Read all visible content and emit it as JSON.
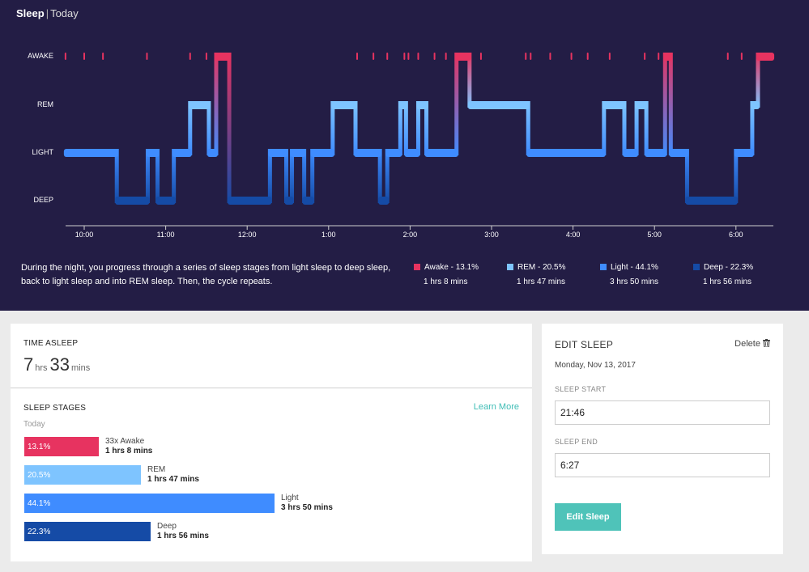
{
  "header": {
    "title": "Sleep",
    "subtitle": "Today"
  },
  "colors": {
    "awake": "#e73360",
    "rem": "#7ec4ff",
    "light": "#3f8cff",
    "deep": "#154ba6",
    "background": "#231d45",
    "accent": "#4fc3b9"
  },
  "chart_data": {
    "type": "line",
    "y_levels": [
      "AWAKE",
      "REM",
      "LIGHT",
      "DEEP"
    ],
    "x_ticks": [
      "10:00",
      "11:00",
      "12:00",
      "1:00",
      "2:00",
      "3:00",
      "4:00",
      "5:00",
      "6:00"
    ],
    "x_range_hours": [
      21.77,
      30.45
    ],
    "segments": [
      {
        "stage": "light",
        "start": 21.77,
        "end": 22.4
      },
      {
        "stage": "deep",
        "start": 22.4,
        "end": 22.78
      },
      {
        "stage": "light",
        "start": 22.78,
        "end": 22.9
      },
      {
        "stage": "deep",
        "start": 22.9,
        "end": 23.1
      },
      {
        "stage": "light",
        "start": 23.1,
        "end": 23.3
      },
      {
        "stage": "rem",
        "start": 23.3,
        "end": 23.53
      },
      {
        "stage": "light",
        "start": 23.53,
        "end": 23.62
      },
      {
        "stage": "awake",
        "start": 23.62,
        "end": 23.78
      },
      {
        "stage": "deep",
        "start": 23.78,
        "end": 24.28
      },
      {
        "stage": "light",
        "start": 24.28,
        "end": 24.48
      },
      {
        "stage": "deep",
        "start": 24.48,
        "end": 24.55
      },
      {
        "stage": "light",
        "start": 24.55,
        "end": 24.7
      },
      {
        "stage": "deep",
        "start": 24.7,
        "end": 24.8
      },
      {
        "stage": "light",
        "start": 24.8,
        "end": 25.05
      },
      {
        "stage": "rem",
        "start": 25.05,
        "end": 25.33
      },
      {
        "stage": "light",
        "start": 25.33,
        "end": 25.63
      },
      {
        "stage": "deep",
        "start": 25.63,
        "end": 25.72
      },
      {
        "stage": "light",
        "start": 25.72,
        "end": 25.88
      },
      {
        "stage": "rem",
        "start": 25.88,
        "end": 25.95
      },
      {
        "stage": "light",
        "start": 25.95,
        "end": 26.1
      },
      {
        "stage": "rem",
        "start": 26.1,
        "end": 26.2
      },
      {
        "stage": "light",
        "start": 26.2,
        "end": 26.57
      },
      {
        "stage": "awake",
        "start": 26.57,
        "end": 26.73
      },
      {
        "stage": "rem",
        "start": 26.73,
        "end": 27.45
      },
      {
        "stage": "light",
        "start": 27.45,
        "end": 28.38
      },
      {
        "stage": "rem",
        "start": 28.38,
        "end": 28.63
      },
      {
        "stage": "light",
        "start": 28.63,
        "end": 28.78
      },
      {
        "stage": "rem",
        "start": 28.78,
        "end": 28.9
      },
      {
        "stage": "light",
        "start": 28.9,
        "end": 29.13
      },
      {
        "stage": "awake",
        "start": 29.13,
        "end": 29.2
      },
      {
        "stage": "light",
        "start": 29.2,
        "end": 29.4
      },
      {
        "stage": "deep",
        "start": 29.4,
        "end": 30.0
      },
      {
        "stage": "light",
        "start": 30.0,
        "end": 30.2
      },
      {
        "stage": "rem",
        "start": 30.2,
        "end": 30.27
      },
      {
        "stage": "awake",
        "start": 30.27,
        "end": 30.45
      }
    ],
    "awake_blips": [
      21.77,
      22.0,
      22.23,
      22.77,
      23.3,
      23.5,
      25.35,
      25.55,
      25.72,
      25.93,
      25.98,
      26.1,
      26.3,
      26.44,
      26.87,
      27.42,
      27.48,
      27.72,
      27.98,
      28.18,
      28.45,
      28.88,
      29.05,
      29.9,
      30.07
    ]
  },
  "description": "During the night, you progress through a series of sleep stages from light sleep to deep sleep, back to light sleep and into REM sleep. Then, the cycle repeats.",
  "legend": [
    {
      "label": "Awake - 13.1%",
      "duration": "1 hrs 8 mins",
      "color": "#e73360"
    },
    {
      "label": "REM - 20.5%",
      "duration": "1 hrs 47 mins",
      "color": "#7ec4ff"
    },
    {
      "label": "Light - 44.1%",
      "duration": "3 hrs 50 mins",
      "color": "#3f8cff"
    },
    {
      "label": "Deep - 22.3%",
      "duration": "1 hrs 56 mins",
      "color": "#154ba6"
    }
  ],
  "time_asleep": {
    "label": "TIME ASLEEP",
    "hours": "7",
    "hours_unit": "hrs",
    "minutes": "33",
    "minutes_unit": "mins"
  },
  "sleep_stages": {
    "label": "SLEEP STAGES",
    "learn_more": "Learn More",
    "period": "Today",
    "bars": [
      {
        "percent_label": "13.1%",
        "percent": 13.1,
        "name": "33x Awake",
        "duration": "1 hrs 8 mins",
        "color": "#e73360"
      },
      {
        "percent_label": "20.5%",
        "percent": 20.5,
        "name": "REM",
        "duration": "1 hrs 47 mins",
        "color": "#7ec4ff"
      },
      {
        "percent_label": "44.1%",
        "percent": 44.1,
        "name": "Light",
        "duration": "3 hrs 50 mins",
        "color": "#3f8cff"
      },
      {
        "percent_label": "22.3%",
        "percent": 22.3,
        "name": "Deep",
        "duration": "1 hrs 56 mins",
        "color": "#154ba6"
      }
    ]
  },
  "edit_sleep": {
    "title": "EDIT SLEEP",
    "delete_label": "Delete",
    "date": "Monday, Nov 13, 2017",
    "start_label": "SLEEP START",
    "start_value": "21:46",
    "end_label": "SLEEP END",
    "end_value": "6:27",
    "button_label": "Edit Sleep"
  }
}
